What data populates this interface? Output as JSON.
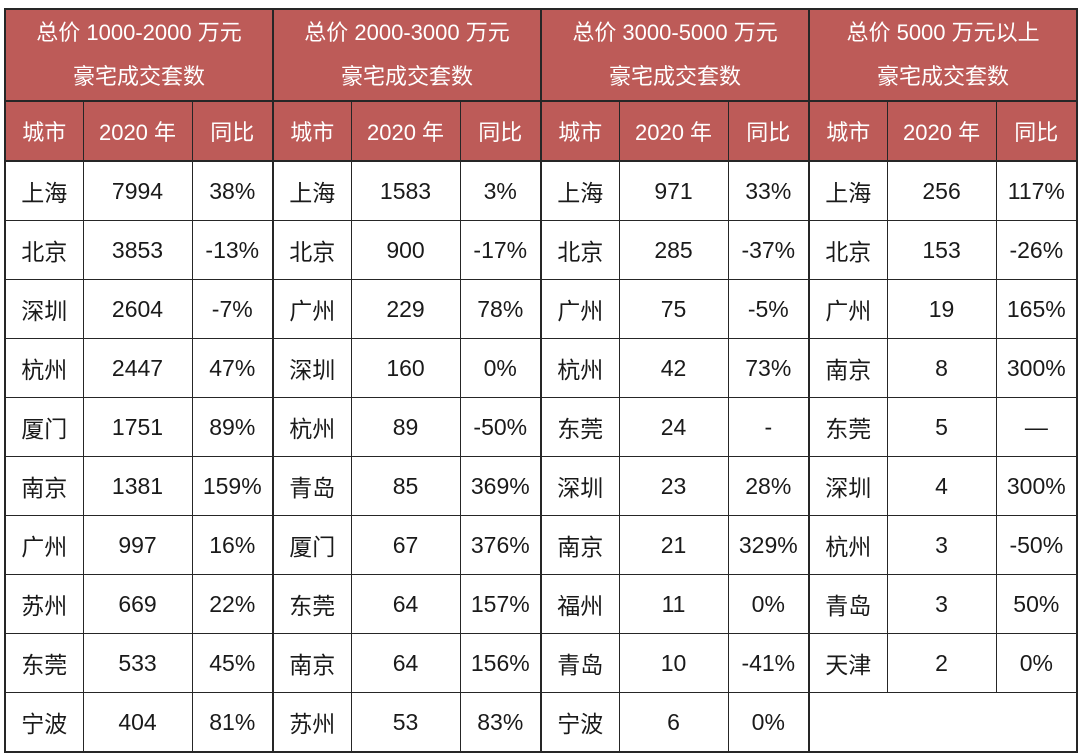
{
  "page": {
    "description": "Luxury home transaction counts by city and total-price bracket, 2020 vs prior year"
  },
  "colors": {
    "header_bg": "#bd5b58",
    "header_text": "#ffffff",
    "cell_bg": "#ffffff",
    "cell_text": "#1a1a1a",
    "border": "#262626"
  },
  "chart_data": [
    {
      "type": "table",
      "title_line1": "总价 1000-2000 万元",
      "title_line2": "豪宅成交套数",
      "columns": [
        "城市",
        "2020 年",
        "同比"
      ],
      "rows": [
        [
          "上海",
          "7994",
          "38%"
        ],
        [
          "北京",
          "3853",
          "-13%"
        ],
        [
          "深圳",
          "2604",
          "-7%"
        ],
        [
          "杭州",
          "2447",
          "47%"
        ],
        [
          "厦门",
          "1751",
          "89%"
        ],
        [
          "南京",
          "1381",
          "159%"
        ],
        [
          "广州",
          "997",
          "16%"
        ],
        [
          "苏州",
          "669",
          "22%"
        ],
        [
          "东莞",
          "533",
          "45%"
        ],
        [
          "宁波",
          "404",
          "81%"
        ]
      ]
    },
    {
      "type": "table",
      "title_line1": "总价 2000-3000 万元",
      "title_line2": "豪宅成交套数",
      "columns": [
        "城市",
        "2020 年",
        "同比"
      ],
      "rows": [
        [
          "上海",
          "1583",
          "3%"
        ],
        [
          "北京",
          "900",
          "-17%"
        ],
        [
          "广州",
          "229",
          "78%"
        ],
        [
          "深圳",
          "160",
          "0%"
        ],
        [
          "杭州",
          "89",
          "-50%"
        ],
        [
          "青岛",
          "85",
          "369%"
        ],
        [
          "厦门",
          "67",
          "376%"
        ],
        [
          "东莞",
          "64",
          "157%"
        ],
        [
          "南京",
          "64",
          "156%"
        ],
        [
          "苏州",
          "53",
          "83%"
        ]
      ]
    },
    {
      "type": "table",
      "title_line1": "总价 3000-5000 万元",
      "title_line2": "豪宅成交套数",
      "columns": [
        "城市",
        "2020 年",
        "同比"
      ],
      "rows": [
        [
          "上海",
          "971",
          "33%"
        ],
        [
          "北京",
          "285",
          "-37%"
        ],
        [
          "广州",
          "75",
          "-5%"
        ],
        [
          "杭州",
          "42",
          "73%"
        ],
        [
          "东莞",
          "24",
          "-"
        ],
        [
          "深圳",
          "23",
          "28%"
        ],
        [
          "南京",
          "21",
          "329%"
        ],
        [
          "福州",
          "11",
          "0%"
        ],
        [
          "青岛",
          "10",
          "-41%"
        ],
        [
          "宁波",
          "6",
          "0%"
        ]
      ]
    },
    {
      "type": "table",
      "title_line1": "总价 5000 万元以上",
      "title_line2": "豪宅成交套数",
      "columns": [
        "城市",
        "2020 年",
        "同比"
      ],
      "rows": [
        [
          "上海",
          "256",
          "117%"
        ],
        [
          "北京",
          "153",
          "-26%"
        ],
        [
          "广州",
          "19",
          "165%"
        ],
        [
          "南京",
          "8",
          "300%"
        ],
        [
          "东莞",
          "5",
          "—"
        ],
        [
          "深圳",
          "4",
          "300%"
        ],
        [
          "杭州",
          "3",
          "-50%"
        ],
        [
          "青岛",
          "3",
          "50%"
        ],
        [
          "天津",
          "2",
          "0%"
        ]
      ]
    }
  ]
}
